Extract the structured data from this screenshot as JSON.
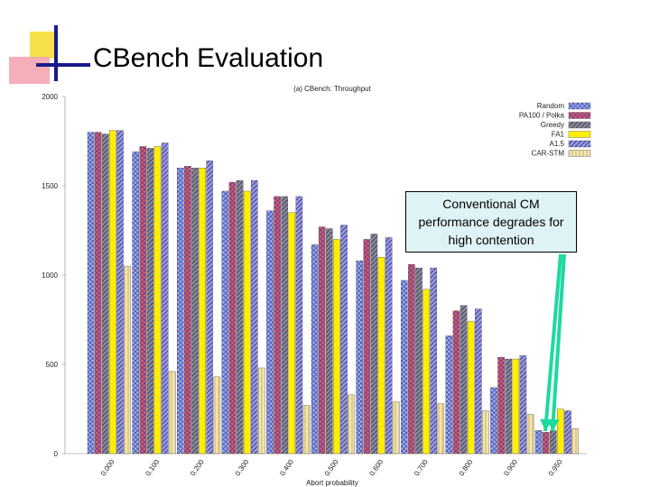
{
  "slide": {
    "title": "CBench Evaluation",
    "callout": "Conventional CM performance degrades for high contention",
    "colors": {
      "arrow": "#1ed9a0",
      "callout_bg": "#dff3f6"
    }
  },
  "chart_data": {
    "type": "bar",
    "title": "(a) CBench: Throughput",
    "xlabel": "Abort probability",
    "ylabel": "",
    "ylim": [
      0,
      2000
    ],
    "yticks": [
      0,
      500,
      1000,
      1500,
      2000
    ],
    "grid": false,
    "legend": "top-right",
    "categories": [
      "0.000",
      "0.100",
      "0.200",
      "0.300",
      "0.400",
      "0.500",
      "0.600",
      "0.700",
      "0.800",
      "0.900",
      "0.950"
    ],
    "series": [
      {
        "name": "Random",
        "color": "#9ab0e8",
        "hatch": "cross",
        "values": [
          1800,
          1690,
          1600,
          1470,
          1360,
          1170,
          1080,
          970,
          660,
          370,
          130
        ]
      },
      {
        "name": "PA100 / Polka",
        "color": "#e85a5a",
        "hatch": "cross",
        "values": [
          1800,
          1720,
          1610,
          1520,
          1440,
          1270,
          1200,
          1060,
          800,
          540,
          120
        ]
      },
      {
        "name": "Greedy",
        "color": "#8a8a8a",
        "hatch": "diag",
        "values": [
          1790,
          1710,
          1600,
          1530,
          1440,
          1260,
          1230,
          1040,
          830,
          530,
          130
        ]
      },
      {
        "name": "FA1",
        "color": "#ffee00",
        "hatch": "none",
        "values": [
          1810,
          1720,
          1600,
          1470,
          1350,
          1200,
          1100,
          920,
          740,
          530,
          250
        ]
      },
      {
        "name": "A1.5",
        "color": "#9898e0",
        "hatch": "diag",
        "values": [
          1810,
          1740,
          1640,
          1530,
          1440,
          1280,
          1210,
          1040,
          810,
          550,
          240
        ]
      },
      {
        "name": "CAR-STM",
        "color": "#f2e6b0",
        "hatch": "vert",
        "values": [
          1050,
          460,
          430,
          480,
          270,
          330,
          290,
          280,
          240,
          220,
          140
        ]
      }
    ]
  }
}
